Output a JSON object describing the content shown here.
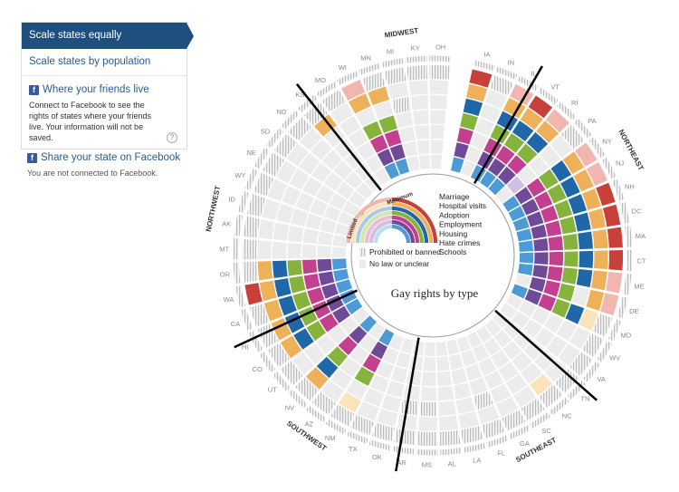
{
  "sidebar": {
    "scale_equal": "Scale states equally",
    "scale_population": "Scale states by population",
    "friends_label": "Where your friends live",
    "friends_desc": "Connect to Facebook to see the rights of states where your friends live. Your information will not be saved.",
    "help": "?",
    "share_label": "Share your state on Facebook",
    "status": "You are not connected to Facebook.",
    "fb_glyph": "f"
  },
  "chart": {
    "title": "Gay rights by type",
    "legend": {
      "maximum": "Maximum",
      "limited": "Limited",
      "types": [
        {
          "label": "Marriage",
          "color": "#c8403a",
          "light": "#f2b6b1"
        },
        {
          "label": "Hospital visits",
          "color": "#eeb15a",
          "light": "#fbe3bb"
        },
        {
          "label": "Adoption",
          "color": "#1f67a8",
          "light": "#a9c9e6"
        },
        {
          "label": "Employment",
          "color": "#86b33c",
          "light": "#d2e6b0"
        },
        {
          "label": "Housing",
          "color": "#c43f8e",
          "light": "#efbad8"
        },
        {
          "label": "Hate crimes",
          "color": "#6f4a98",
          "light": "#cfc0e3"
        },
        {
          "label": "Schools",
          "color": "#4c9ad6",
          "light": "#bcdcf3"
        }
      ],
      "prohibited": "Prohibited or banned",
      "no_law": "No law or unclear"
    },
    "regions": [
      {
        "name": "MIDWEST"
      },
      {
        "name": "NORTHEAST"
      },
      {
        "name": "SOUTHEAST"
      },
      {
        "name": "SOUTHWEST"
      },
      {
        "name": "NORTHWEST"
      }
    ],
    "states": [
      "IA",
      "IN",
      "IL",
      "VT",
      "RI",
      "PA",
      "NY",
      "NJ",
      "NH",
      "DC",
      "MA",
      "CT",
      "ME",
      "DE",
      "MD",
      "WV",
      "VA",
      "TN",
      "NC",
      "SC",
      "GA",
      "FL",
      "LA",
      "AL",
      "MS",
      "AR",
      "OK",
      "TX",
      "NM",
      "AZ",
      "NV",
      "UT",
      "CO",
      "HI",
      "CA",
      "WA",
      "OR",
      "MT",
      "AK",
      "ID",
      "WY",
      "NE",
      "SD",
      "ND",
      "KS",
      "MO",
      "WI",
      "MN",
      "MI",
      "KY",
      "OH"
    ],
    "levels_legend": "0=no law, 1=limited, 2=maximum, 3=prohibited",
    "rights": {
      "IA": [
        2,
        2,
        2,
        2,
        2,
        2,
        2
      ],
      "IN": [
        3,
        0,
        0,
        0,
        0,
        0,
        0
      ],
      "IL": [
        1,
        2,
        2,
        2,
        2,
        2,
        2
      ],
      "VT": [
        2,
        2,
        2,
        2,
        2,
        2,
        2
      ],
      "RI": [
        1,
        2,
        2,
        2,
        2,
        2,
        2
      ],
      "PA": [
        3,
        0,
        0,
        0,
        0,
        1,
        0
      ],
      "NY": [
        1,
        2,
        2,
        2,
        2,
        2,
        2
      ],
      "NJ": [
        1,
        2,
        2,
        2,
        2,
        2,
        2
      ],
      "NH": [
        2,
        2,
        2,
        2,
        2,
        2,
        2
      ],
      "DC": [
        2,
        2,
        2,
        2,
        2,
        2,
        2
      ],
      "MA": [
        2,
        2,
        2,
        2,
        2,
        2,
        2
      ],
      "CT": [
        2,
        2,
        2,
        2,
        2,
        2,
        2
      ],
      "ME": [
        1,
        2,
        2,
        2,
        2,
        2,
        2
      ],
      "DE": [
        1,
        2,
        0,
        2,
        2,
        2,
        0
      ],
      "MD": [
        3,
        1,
        2,
        2,
        2,
        2,
        2
      ],
      "WV": [
        3,
        0,
        0,
        0,
        0,
        0,
        0
      ],
      "VA": [
        3,
        0,
        0,
        0,
        0,
        0,
        0
      ],
      "TN": [
        3,
        0,
        0,
        0,
        0,
        0,
        0
      ],
      "NC": [
        3,
        1,
        0,
        0,
        0,
        0,
        0
      ],
      "SC": [
        3,
        0,
        0,
        0,
        0,
        0,
        0
      ],
      "GA": [
        3,
        0,
        0,
        0,
        0,
        0,
        0
      ],
      "FL": [
        3,
        0,
        3,
        0,
        0,
        0,
        0
      ],
      "LA": [
        3,
        0,
        0,
        0,
        0,
        0,
        0
      ],
      "AL": [
        3,
        0,
        0,
        0,
        0,
        0,
        0
      ],
      "MS": [
        3,
        0,
        3,
        0,
        0,
        0,
        0
      ],
      "AR": [
        3,
        0,
        3,
        0,
        0,
        0,
        0
      ],
      "OK": [
        3,
        0,
        0,
        0,
        0,
        0,
        0
      ],
      "TX": [
        3,
        0,
        0,
        0,
        0,
        0,
        0
      ],
      "NM": [
        3,
        1,
        0,
        2,
        2,
        2,
        2
      ],
      "AZ": [
        3,
        0,
        0,
        0,
        0,
        0,
        0
      ],
      "NV": [
        3,
        2,
        2,
        2,
        2,
        2,
        2
      ],
      "UT": [
        3,
        0,
        0,
        0,
        0,
        0,
        0
      ],
      "CO": [
        3,
        2,
        2,
        2,
        2,
        2,
        2
      ],
      "HI": [
        3,
        2,
        2,
        2,
        2,
        2,
        2
      ],
      "CA": [
        3,
        2,
        2,
        2,
        2,
        2,
        2
      ],
      "WA": [
        2,
        2,
        2,
        2,
        2,
        2,
        2
      ],
      "OR": [
        3,
        2,
        2,
        2,
        2,
        2,
        2
      ],
      "MT": [
        3,
        0,
        0,
        0,
        0,
        0,
        0
      ],
      "AK": [
        3,
        0,
        0,
        0,
        0,
        0,
        0
      ],
      "ID": [
        3,
        0,
        0,
        0,
        0,
        0,
        0
      ],
      "WY": [
        3,
        0,
        0,
        0,
        0,
        0,
        0
      ],
      "NE": [
        3,
        0,
        0,
        0,
        0,
        0,
        0
      ],
      "SD": [
        3,
        0,
        0,
        0,
        0,
        0,
        0
      ],
      "ND": [
        3,
        0,
        0,
        0,
        0,
        0,
        0
      ],
      "KS": [
        3,
        2,
        0,
        0,
        0,
        0,
        0
      ],
      "MO": [
        3,
        0,
        0,
        0,
        0,
        0,
        0
      ],
      "WI": [
        1,
        2,
        0,
        2,
        2,
        2,
        2
      ],
      "MN": [
        3,
        2,
        0,
        2,
        2,
        2,
        2
      ],
      "MI": [
        3,
        0,
        3,
        0,
        0,
        0,
        0
      ],
      "KY": [
        3,
        0,
        0,
        0,
        0,
        0,
        0
      ],
      "OH": [
        3,
        0,
        0,
        0,
        0,
        0,
        0
      ]
    }
  }
}
